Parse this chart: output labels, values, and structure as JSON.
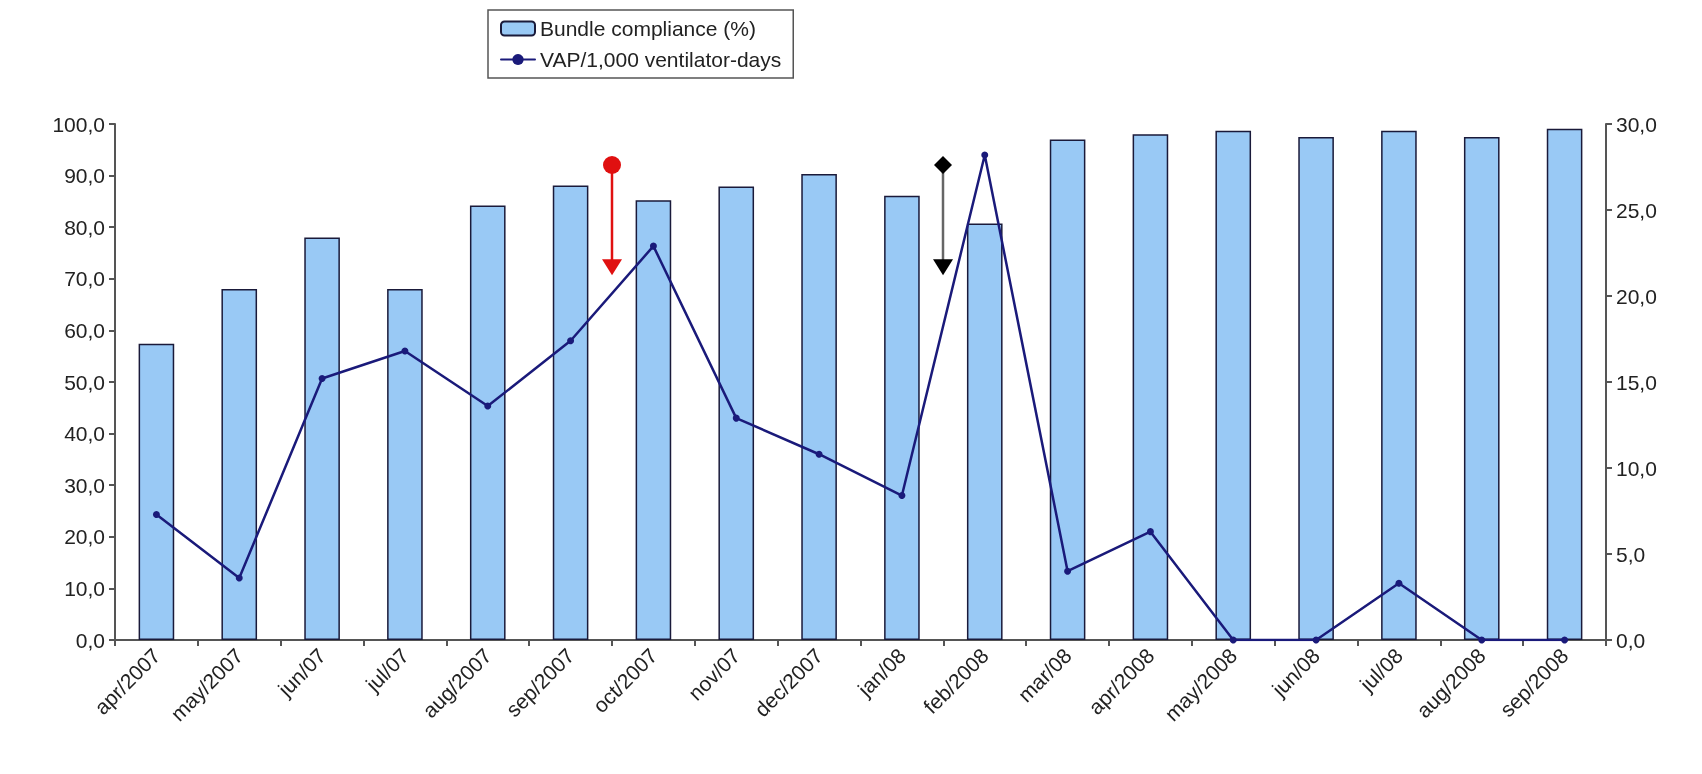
{
  "chart_data": {
    "type": "bar",
    "categories": [
      "apr/2007",
      "may/2007",
      "jun/07",
      "jul/07",
      "aug/2007",
      "sep/2007",
      "oct/2007",
      "nov/07",
      "dec/2007",
      "jan/08",
      "feb/2008",
      "mar/08",
      "apr/2008",
      "may/2008",
      "jun/08",
      "jul/08",
      "aug/2008",
      "sep/2008"
    ],
    "series": [
      {
        "name": "Bundle compliance (%)",
        "color": "#99c9f5",
        "values": [
          57.4,
          68.0,
          78.0,
          68.0,
          84.2,
          88.1,
          85.2,
          87.9,
          90.3,
          86.1,
          80.7,
          97.0,
          98.0,
          98.7,
          97.5,
          98.7,
          97.5,
          99.1
        ]
      },
      {
        "name": "VAP/1,000 ventilator-days",
        "type": "line",
        "axis": "y2",
        "color": "#1a1a7a",
        "values": [
          7.3,
          3.6,
          15.2,
          16.8,
          13.6,
          17.4,
          22.9,
          12.9,
          10.8,
          8.4,
          28.2,
          4.0,
          6.3,
          0,
          0,
          3.3,
          0,
          0
        ]
      }
    ],
    "ylim": [
      0,
      100
    ],
    "yticks": [
      {
        "value": 0,
        "label": "0,0"
      },
      {
        "value": 10,
        "label": "10,0"
      },
      {
        "value": 20,
        "label": "20,0"
      },
      {
        "value": 30,
        "label": "30,0"
      },
      {
        "value": 40,
        "label": "40,0"
      },
      {
        "value": 50,
        "label": "50,0"
      },
      {
        "value": 60,
        "label": "60,0"
      },
      {
        "value": 70,
        "label": "70,0"
      },
      {
        "value": 80,
        "label": "80,0"
      },
      {
        "value": 90,
        "label": "90,0"
      },
      {
        "value": 100,
        "label": "100,0"
      }
    ],
    "y2lim": [
      0,
      30
    ],
    "y2ticks": [
      {
        "value": 0,
        "label": "0,0"
      },
      {
        "value": 5,
        "label": "5,0"
      },
      {
        "value": 10,
        "label": "10,0"
      },
      {
        "value": 15,
        "label": "15,0"
      },
      {
        "value": 20,
        "label": "20,0"
      },
      {
        "value": 25,
        "label": "25,0"
      },
      {
        "value": 30,
        "label": "30,0"
      }
    ],
    "grid": false,
    "legend": "top",
    "marker": "circle",
    "line_style": "solid"
  }
}
